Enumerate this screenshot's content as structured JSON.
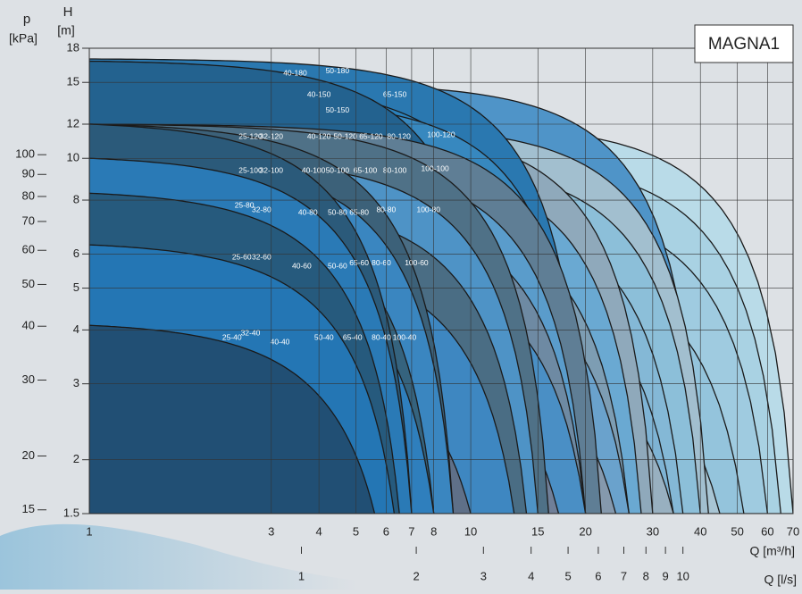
{
  "chart_data": {
    "type": "pump-curves",
    "title": "MAGNA1",
    "y_label": "H",
    "y_unit": "[m]",
    "y2_label": "p",
    "y2_unit": "[kPa]",
    "x_label": "Q [m³/h]",
    "x2_label": "Q [l/s]",
    "log_x": true,
    "log_y": true,
    "grid": true,
    "xlim": [
      1,
      70
    ],
    "xticks": [
      1,
      3,
      4,
      5,
      6,
      7,
      8,
      10,
      15,
      20,
      30,
      40,
      50,
      60,
      70
    ],
    "ylim": [
      1.5,
      18
    ],
    "yticks": [
      1.5,
      2,
      3,
      4,
      5,
      6,
      8,
      10,
      12,
      15,
      18
    ],
    "y2lim": [
      14.7,
      176.6
    ],
    "y2ticks": [
      15,
      20,
      30,
      40,
      50,
      60,
      70,
      80,
      90,
      100
    ],
    "x2lim": [
      0.278,
      19.44
    ],
    "x2ticks": [
      1,
      2,
      3,
      4,
      5,
      6,
      7,
      8,
      9,
      10
    ],
    "regions": [
      {
        "name": "100-120",
        "h_max": 12.1,
        "q_max": 70,
        "color": "#b9dbe8"
      },
      {
        "name": "100-100",
        "h_max": 10.1,
        "q_max": 65,
        "color": "#a9d2e3"
      },
      {
        "name": "100-80",
        "h_max": 8.1,
        "q_max": 60,
        "color": "#9fcbe0"
      },
      {
        "name": "100-60",
        "h_max": 6.1,
        "q_max": 52,
        "color": "#94c4dc"
      },
      {
        "name": "100-40",
        "h_max": 4.1,
        "q_max": 45,
        "color": "#a8c5d4"
      },
      {
        "name": "65-150",
        "h_max": 15,
        "q_max": 40,
        "color": "#4f94c8"
      },
      {
        "name": "80-120",
        "h_max": 12,
        "q_max": 42,
        "color": "#a2bfcf"
      },
      {
        "name": "80-100",
        "h_max": 10,
        "q_max": 40,
        "color": "#8cbfd9"
      },
      {
        "name": "80-80",
        "h_max": 8.1,
        "q_max": 36,
        "color": "#84b8d6"
      },
      {
        "name": "80-60",
        "h_max": 6.1,
        "q_max": 34,
        "color": "#7eb3d4"
      },
      {
        "name": "80-40",
        "h_max": 4.1,
        "q_max": 34,
        "color": "#98b0c0"
      },
      {
        "name": "65-120",
        "h_max": 12,
        "q_max": 30,
        "color": "#8fa9bb"
      },
      {
        "name": "65-100",
        "h_max": 10,
        "q_max": 28,
        "color": "#6aa9d2"
      },
      {
        "name": "65-80",
        "h_max": 8,
        "q_max": 26,
        "color": "#7d9db3"
      },
      {
        "name": "65-60",
        "h_max": 6.1,
        "q_max": 26,
        "color": "#6aa2cc"
      },
      {
        "name": "65-40",
        "h_max": 4.1,
        "q_max": 24,
        "color": "#8599ad"
      },
      {
        "name": "50-180",
        "h_max": 17,
        "q_max": 20,
        "color": "#2a78b0"
      },
      {
        "name": "40-150",
        "h_max": 15,
        "q_max": 16,
        "color": "#2b82bd"
      },
      {
        "name": "50-150",
        "h_max": 13.8,
        "q_max": 20,
        "color": "#3788bf"
      },
      {
        "name": "40-180",
        "h_max": 16.8,
        "q_max": 12,
        "color": "#23628f"
      },
      {
        "name": "50-120",
        "h_max": 12,
        "q_max": 22,
        "color": "#5f7e95"
      },
      {
        "name": "50-100",
        "h_max": 10,
        "q_max": 20,
        "color": "#5a9ccb"
      },
      {
        "name": "50-80",
        "h_max": 8,
        "q_max": 20,
        "color": "#6e8aa3"
      },
      {
        "name": "50-60",
        "h_max": 6,
        "q_max": 20,
        "color": "#4a8fc5"
      },
      {
        "name": "50-40",
        "h_max": 4.1,
        "q_max": 17,
        "color": "#707f98"
      },
      {
        "name": "40-120",
        "h_max": 12,
        "q_max": 16,
        "color": "#4f7187"
      },
      {
        "name": "40-100",
        "h_max": 10,
        "q_max": 15,
        "color": "#4e93c6"
      },
      {
        "name": "40-80",
        "h_max": 8,
        "q_max": 14,
        "color": "#4a6d84"
      },
      {
        "name": "40-60",
        "h_max": 6,
        "q_max": 13,
        "color": "#3e87c1"
      },
      {
        "name": "40-40",
        "h_max": 4,
        "q_max": 10,
        "color": "#5f7088"
      },
      {
        "name": "32-120",
        "h_max": 12,
        "q_max": 9,
        "color": "#3c6179"
      },
      {
        "name": "32-100",
        "h_max": 10,
        "q_max": 9,
        "color": "#3a86c0"
      },
      {
        "name": "32-80",
        "h_max": 8.1,
        "q_max": 8,
        "color": "#35637e"
      },
      {
        "name": "32-60",
        "h_max": 6.3,
        "q_max": 8,
        "color": "#2f7fbd"
      },
      {
        "name": "32-40",
        "h_max": 4.2,
        "q_max": 7,
        "color": "#4b6975"
      },
      {
        "name": "25-120",
        "h_max": 12,
        "q_max": 7,
        "color": "#2b5a7a"
      },
      {
        "name": "25-100",
        "h_max": 10,
        "q_max": 7,
        "color": "#2a7ab6"
      },
      {
        "name": "25-80",
        "h_max": 8.3,
        "q_max": 6.5,
        "color": "#265a7d"
      },
      {
        "name": "25-60",
        "h_max": 6.3,
        "q_max": 6.3,
        "color": "#2476b4"
      },
      {
        "name": "25-40",
        "h_max": 4.1,
        "q_max": 5.6,
        "color": "#214f74"
      }
    ]
  }
}
